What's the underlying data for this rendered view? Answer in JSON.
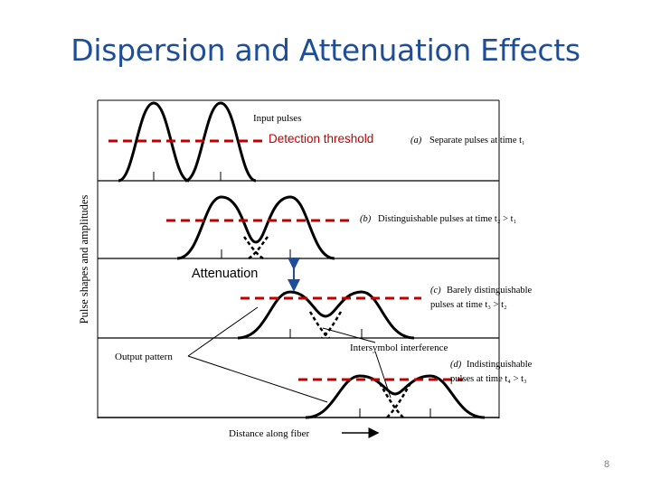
{
  "slide": {
    "title": "Dispersion and Attenuation Effects",
    "page_number": "8"
  },
  "diagram": {
    "y_axis_label": "Pulse shapes and amplitudes",
    "x_axis_label": "Distance along fiber",
    "input_pulses_label": "Input pulses",
    "output_pattern_label": "Output pattern",
    "isi_label": "Intersymbol interference",
    "panels": [
      {
        "tag": "(a)",
        "text_lines": [
          "Separate pulses at time t₁"
        ]
      },
      {
        "tag": "(b)",
        "text_lines": [
          "Distinguishable pulses at time t₂ > t₁"
        ]
      },
      {
        "tag": "(c)",
        "text_lines": [
          "Barely distinguishable",
          "pulses at time t₃ > t₂"
        ]
      },
      {
        "tag": "(d)",
        "text_lines": [
          "Indistinguishable",
          "pulses at time t₄ > t₃"
        ]
      }
    ]
  },
  "annotations": {
    "detection_threshold": "Detection threshold",
    "attenuation": "Attenuation"
  },
  "colors": {
    "title": "#1f4e99",
    "threshold": "#c00000",
    "arrow": "#1f4e99"
  }
}
